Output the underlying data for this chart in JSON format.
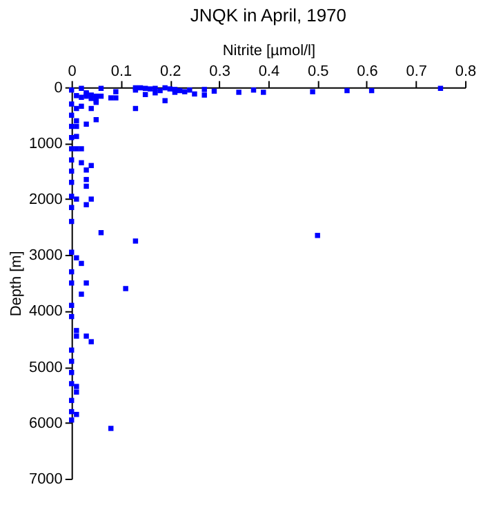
{
  "chart_data": {
    "type": "scatter",
    "title": "JNQK in April, 1970",
    "xlabel": "Nitrite [µmol/l]",
    "ylabel": "Depth [m]",
    "xlim": [
      0,
      0.8
    ],
    "xticks": [
      0,
      0.1,
      0.2,
      0.3,
      0.4,
      0.5,
      0.6,
      0.7,
      0.8
    ],
    "ylim": [
      7000,
      0
    ],
    "yticks": [
      0,
      1000,
      2000,
      3000,
      4000,
      5000,
      6000,
      7000
    ],
    "grid": false,
    "marker": "square",
    "series": [
      {
        "color": "#0000ff",
        "x": [
          0.75,
          0.61,
          0.56,
          0.49,
          0.39,
          0.37,
          0.34,
          0.29,
          0.27,
          0.27,
          0.25,
          0.24,
          0.23,
          0.22,
          0.21,
          0.21,
          0.2,
          0.19,
          0.19,
          0.18,
          0.17,
          0.17,
          0.16,
          0.15,
          0.15,
          0.14,
          0.13,
          0.13,
          0.13,
          0.09,
          0.09,
          0.08,
          0.06,
          0.06,
          0.05,
          0.05,
          0.05,
          0.05,
          0.04,
          0.04,
          0.04,
          0.03,
          0.03,
          0.03,
          0.03,
          0.02,
          0.02,
          0.02,
          0.01,
          0.01,
          0.01,
          0.01,
          0.01,
          0.0,
          0.0,
          0.0,
          0.0,
          0.0,
          0.0,
          0.02,
          0.01,
          0.0,
          0.0,
          0.02,
          0.04,
          0.03,
          0.03,
          0.03,
          0.0,
          0.0,
          0.01,
          0.04,
          0.03,
          0.0,
          0.0,
          0.06,
          0.13,
          0.5,
          0.0,
          0.01,
          0.02,
          0.0,
          0.0,
          0.03,
          0.11,
          0.02,
          0.0,
          0.0,
          0.01,
          0.01,
          0.03,
          0.04,
          0.0,
          0.0,
          0.0,
          0.0,
          0.01,
          0.01,
          0.0,
          0.0,
          0.01,
          0.0,
          0.08
        ],
        "values": [
          20,
          60,
          60,
          80,
          90,
          50,
          90,
          70,
          40,
          140,
          120,
          50,
          80,
          60,
          90,
          40,
          30,
          10,
          240,
          60,
          100,
          20,
          30,
          130,
          20,
          10,
          50,
          10,
          380,
          80,
          190,
          190,
          20,
          160,
          160,
          240,
          270,
          580,
          140,
          200,
          380,
          100,
          120,
          160,
          660,
          20,
          180,
          340,
          150,
          380,
          600,
          700,
          880,
          50,
          300,
          500,
          700,
          900,
          1100,
          1100,
          1100,
          1300,
          1500,
          1350,
          1400,
          1480,
          1650,
          1770,
          1700,
          1950,
          2000,
          2000,
          2100,
          2150,
          2400,
          2600,
          2750,
          2650,
          2950,
          3050,
          3150,
          3300,
          3500,
          3500,
          3600,
          3700,
          3900,
          4100,
          4350,
          4450,
          4450,
          4550,
          4700,
          4900,
          5100,
          5300,
          5350,
          5450,
          5600,
          5800,
          5850,
          5950,
          6100
        ]
      }
    ]
  }
}
